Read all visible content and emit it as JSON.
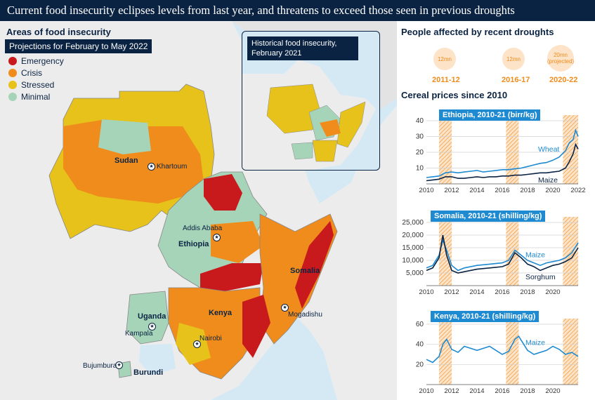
{
  "title": "Current food insecurity eclipses levels from last year, and threatens to exceed those seen in previous droughts",
  "map": {
    "legend_title": "Areas of food insecurity",
    "projection_label": "Projections for February to May 2022",
    "legend": [
      {
        "label": "Emergency",
        "color": "#c8191d"
      },
      {
        "label": "Crisis",
        "color": "#f08c1b"
      },
      {
        "label": "Stressed",
        "color": "#e6c21a"
      },
      {
        "label": "Minimal",
        "color": "#a6d4b8"
      }
    ],
    "countries": [
      "Sudan",
      "Ethiopia",
      "Somalia",
      "Kenya",
      "Uganda",
      "Burundi"
    ],
    "cities": [
      "Khartoum",
      "Addis Ababa",
      "Mogadishu",
      "Nairobi",
      "Kampala",
      "Bujumbura"
    ],
    "inset_label": "Historical food insecurity, February 2021"
  },
  "droughts": {
    "title": "People affected by recent droughts",
    "items": [
      {
        "value": "12mn",
        "year": "2011-12"
      },
      {
        "value": "12mn",
        "year": "2016-17"
      },
      {
        "value": "20mn (projected)",
        "year": "2020-22"
      }
    ]
  },
  "cereal": {
    "title": "Cereal prices  since 2010"
  },
  "chart_data": [
    {
      "type": "line",
      "title": "Ethiopia, 2010-21 (birr/kg)",
      "x_ticks": [
        "2010",
        "2012",
        "2014",
        "2016",
        "2018",
        "2020",
        "2022"
      ],
      "y_ticks": [
        "10",
        "20",
        "30",
        "40"
      ],
      "ylim": [
        0,
        40
      ],
      "xlim": [
        2010,
        2022
      ],
      "series": [
        {
          "name": "Wheat",
          "color": "#1e8ad1",
          "x": [
            2010,
            2010.5,
            2011,
            2011.5,
            2012,
            2012.5,
            2013,
            2013.5,
            2014,
            2014.5,
            2015,
            2015.5,
            2016,
            2016.5,
            2017,
            2017.5,
            2018,
            2018.5,
            2019,
            2019.5,
            2020,
            2020.5,
            2021,
            2021.3,
            2021.6,
            2021.8,
            2022
          ],
          "y": [
            4,
            4.5,
            5,
            7,
            7.5,
            7,
            7.5,
            8,
            8.5,
            7.5,
            8,
            8.5,
            9,
            9,
            9.5,
            10,
            11,
            12,
            13,
            13.5,
            15,
            17,
            21,
            26,
            28,
            34,
            30
          ]
        },
        {
          "name": "Maize",
          "color": "#0b2343",
          "x": [
            2010,
            2010.5,
            2011,
            2011.5,
            2012,
            2012.5,
            2013,
            2013.5,
            2014,
            2014.5,
            2015,
            2015.5,
            2016,
            2016.5,
            2017,
            2017.5,
            2018,
            2018.5,
            2019,
            2019.5,
            2020,
            2020.5,
            2021,
            2021.3,
            2021.6,
            2021.8,
            2022
          ],
          "y": [
            2,
            2.5,
            3,
            4.5,
            4.5,
            3.5,
            3.5,
            4,
            4.5,
            4,
            4.5,
            4.5,
            5,
            5,
            5.5,
            5.5,
            6,
            6.5,
            7,
            7,
            7.5,
            8,
            10,
            14,
            19,
            25,
            22
          ]
        }
      ],
      "drought_bands": [
        [
          2011,
          2012
        ],
        [
          2016.3,
          2017.3
        ],
        [
          2020.8,
          2022
        ]
      ]
    },
    {
      "type": "line",
      "title": "Somalia, 2010-21 (shilling/kg)",
      "x_ticks": [
        "2010",
        "2012",
        "2014",
        "2016",
        "2018",
        "2020"
      ],
      "y_ticks": [
        "5,000",
        "10,000",
        "15,000",
        "20,000",
        "25,000"
      ],
      "ylim": [
        0,
        25000
      ],
      "xlim": [
        2010,
        2022
      ],
      "series": [
        {
          "name": "Maize",
          "color": "#1e8ad1",
          "x": [
            2010,
            2010.5,
            2011,
            2011.3,
            2011.6,
            2012,
            2012.5,
            2013,
            2014,
            2015,
            2016,
            2016.5,
            2017,
            2017.5,
            2018,
            2018.5,
            2019,
            2019.5,
            2020,
            2020.5,
            2021,
            2021.5,
            2022
          ],
          "y": [
            7000,
            8000,
            12000,
            18000,
            14000,
            8000,
            6000,
            7000,
            8000,
            8500,
            9000,
            10000,
            14000,
            12000,
            10000,
            9000,
            8000,
            9000,
            9500,
            10000,
            11000,
            13000,
            17000
          ]
        },
        {
          "name": "Sorghum",
          "color": "#0b2343",
          "x": [
            2010,
            2010.5,
            2011,
            2011.3,
            2011.6,
            2012,
            2012.5,
            2013,
            2014,
            2015,
            2016,
            2016.5,
            2017,
            2017.5,
            2018,
            2018.5,
            2019,
            2019.5,
            2020,
            2020.5,
            2021,
            2021.5,
            2022
          ],
          "y": [
            6000,
            7000,
            11000,
            20000,
            12000,
            6000,
            5000,
            5500,
            6500,
            7000,
            7500,
            8500,
            13000,
            11000,
            8500,
            7500,
            6000,
            7000,
            8000,
            8500,
            9500,
            11000,
            15000
          ]
        }
      ],
      "drought_bands": [
        [
          2011,
          2012
        ],
        [
          2016.3,
          2017.3
        ],
        [
          2020.8,
          2022
        ]
      ]
    },
    {
      "type": "line",
      "title": "Kenya, 2010-21 (shilling/kg)",
      "x_ticks": [
        "2010",
        "2012",
        "2014",
        "2016",
        "2018",
        "2020"
      ],
      "y_ticks": [
        "20",
        "40",
        "60"
      ],
      "ylim": [
        0,
        60
      ],
      "xlim": [
        2010,
        2022
      ],
      "series": [
        {
          "name": "Maize",
          "color": "#1e8ad1",
          "x": [
            2010,
            2010.5,
            2011,
            2011.3,
            2011.6,
            2012,
            2012.5,
            2013,
            2013.5,
            2014,
            2014.5,
            2015,
            2015.5,
            2016,
            2016.5,
            2017,
            2017.3,
            2017.6,
            2018,
            2018.5,
            2019,
            2019.5,
            2020,
            2020.5,
            2021,
            2021.5,
            2022
          ],
          "y": [
            25,
            22,
            28,
            40,
            45,
            35,
            32,
            38,
            36,
            34,
            36,
            38,
            34,
            30,
            33,
            45,
            48,
            42,
            34,
            30,
            32,
            34,
            38,
            35,
            30,
            32,
            28
          ]
        }
      ],
      "drought_bands": [
        [
          2011,
          2012
        ],
        [
          2016.3,
          2017.3
        ],
        [
          2020.8,
          2022
        ]
      ]
    }
  ]
}
